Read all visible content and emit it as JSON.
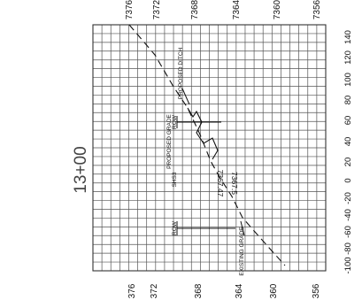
{
  "station": "13+00",
  "elevation_axis": {
    "left_labels": [
      "376",
      "372",
      "368",
      "364",
      "360",
      "356"
    ],
    "top_labels": [
      "7376",
      "7372",
      "7368",
      "7364",
      "7360",
      "7356"
    ]
  },
  "offset_axis": {
    "labels": [
      "-100",
      "-80",
      "-60",
      "-40",
      "-20",
      "0",
      "20",
      "40",
      "60",
      "80",
      "100",
      "120",
      "140"
    ]
  },
  "grade_elevations": [
    "7367.47",
    "7367.5"
  ],
  "notes": {
    "row_1": "ROW",
    "row_2": "ROW",
    "existing_grade": "EXISTING GRADE",
    "proposed_grade": "PROPOSED GRADE",
    "proposed_ditch": "PROPOSED DITCH",
    "sheet_code": "SHS3"
  },
  "colors": {
    "line": "#111111",
    "grid": "#555555",
    "background": "#ffffff"
  }
}
